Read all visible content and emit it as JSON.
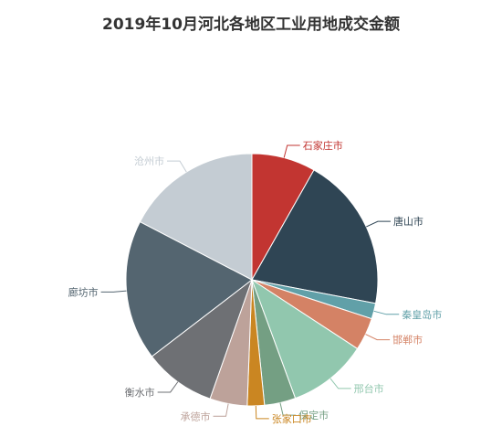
{
  "chart_data": {
    "type": "pie",
    "title": "2019年10月河北各地区工业用地成交金额",
    "slices": [
      {
        "name": "石家庄市",
        "value": 8.2,
        "color": "#c23531"
      },
      {
        "name": "唐山市",
        "value": 19.8,
        "color": "#2f4554"
      },
      {
        "name": "秦皇岛市",
        "value": 2.0,
        "color": "#61a0a8"
      },
      {
        "name": "邯郸市",
        "value": 4.2,
        "color": "#d48265"
      },
      {
        "name": "邢台市",
        "value": 10.2,
        "color": "#91c7ae"
      },
      {
        "name": "保定市",
        "value": 4.0,
        "color": "#749f83"
      },
      {
        "name": "张家口市",
        "value": 2.2,
        "color": "#ca8622"
      },
      {
        "name": "承德市",
        "value": 4.8,
        "color": "#bda29a"
      },
      {
        "name": "衡水市",
        "value": 9.2,
        "color": "#6e7074"
      },
      {
        "name": "廊坊市",
        "value": 18.0,
        "color": "#546570"
      },
      {
        "name": "沧州市",
        "value": 17.4,
        "color": "#c4ccd3"
      }
    ]
  }
}
